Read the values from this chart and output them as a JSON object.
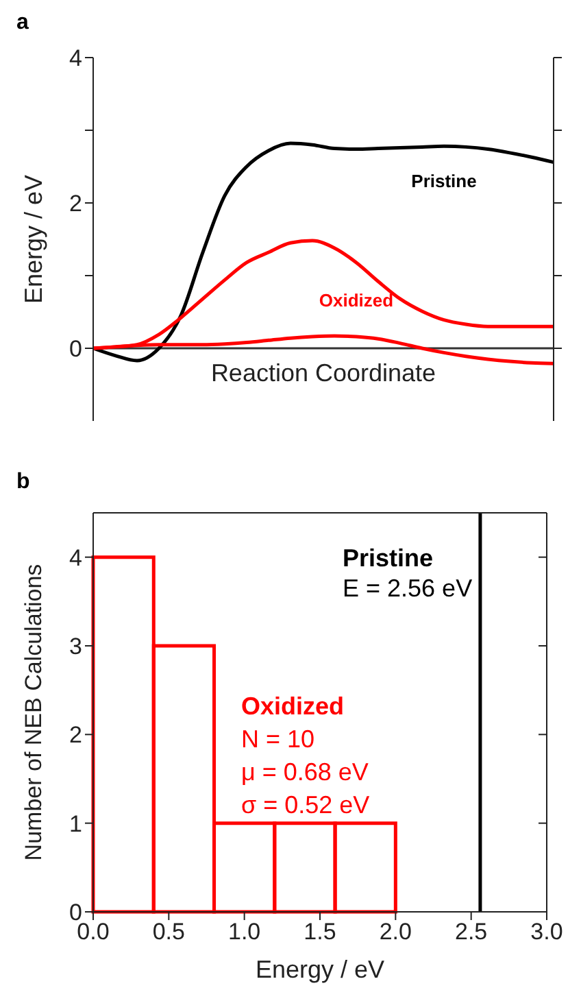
{
  "chart_data": [
    {
      "type": "line",
      "title": "a",
      "ylabel": "Energy / eV",
      "xlabel": "Reaction Coordinate",
      "categories": [
        null,
        null,
        null,
        null,
        null,
        null,
        null,
        null,
        null,
        null,
        null,
        null,
        null,
        null,
        null,
        null,
        null,
        null,
        null,
        null,
        null,
        null
      ],
      "series": [
        {
          "name": "Pristine",
          "color": "#000000",
          "values": [
            0,
            -0.1,
            -0.17,
            0.0,
            0.45,
            1.32,
            2.1,
            2.5,
            2.72,
            2.82,
            2.8,
            2.75,
            2.74,
            2.75,
            2.76,
            2.77,
            2.78,
            2.77,
            2.74,
            2.69,
            2.63,
            2.56
          ]
        },
        {
          "color": "#ff0000",
          "values": [
            0,
            0.02,
            0.05,
            0.19,
            0.42,
            0.68,
            0.94,
            1.18,
            1.32,
            1.45,
            1.48,
            1.38,
            1.18,
            0.92,
            0.68,
            0.51,
            0.39,
            0.33,
            0.3,
            0.3,
            0.3,
            0.3
          ]
        },
        {
          "name": "Oxidized",
          "color": "#ff0000",
          "values": [
            0,
            0.02,
            0.04,
            0.05,
            0.05,
            0.05,
            0.06,
            0.08,
            0.11,
            0.14,
            0.16,
            0.17,
            0.16,
            0.13,
            0.07,
            0.0,
            -0.06,
            -0.11,
            -0.15,
            -0.18,
            -0.2,
            -0.21
          ]
        }
      ],
      "ylim": [
        -1,
        4
      ],
      "yticks": [
        0,
        {
          "value": 1,
          "label": null
        },
        2,
        {
          "value": 3,
          "label": null
        },
        4
      ],
      "ref_lines": [
        {
          "axis": "y",
          "value": 0,
          "color": "#333333"
        }
      ],
      "tick_labels": "y",
      "marker": "none",
      "line_style": "solid",
      "legend": false,
      "grid": false
    },
    {
      "type": "histogram",
      "title": "b",
      "xlabel": "Energy / eV",
      "ylabel": "Number of NEB Calculations",
      "bins": [
        0,
        0.4,
        0.8,
        1.2,
        1.6,
        2.0
      ],
      "values": [
        4,
        3,
        1,
        1,
        1
      ],
      "color": "#ff0000",
      "xlim": [
        0,
        3
      ],
      "xticks": [
        {
          "value": 0,
          "label": "0.0"
        },
        {
          "value": 0.5,
          "label": "0.5"
        },
        {
          "value": 1,
          "label": "1.0"
        },
        {
          "value": 1.5,
          "label": "1.5"
        },
        {
          "value": 2,
          "label": "2.0"
        },
        {
          "value": 2.5,
          "label": "2.5"
        },
        {
          "value": 3,
          "label": "3.0"
        }
      ],
      "ylim": [
        0,
        4.5
      ],
      "yticks": [
        0,
        1,
        2,
        3,
        4
      ],
      "ref_lines": [
        {
          "axis": "x",
          "value": 2.56,
          "color": "#000000"
        }
      ],
      "annotations": [
        "Pristine",
        "E = 2.56 eV",
        "Oxidized",
        "N = 10",
        "μ = 0.68 eV",
        "σ = 0.52 eV"
      ],
      "legend": false,
      "grid": false
    }
  ]
}
